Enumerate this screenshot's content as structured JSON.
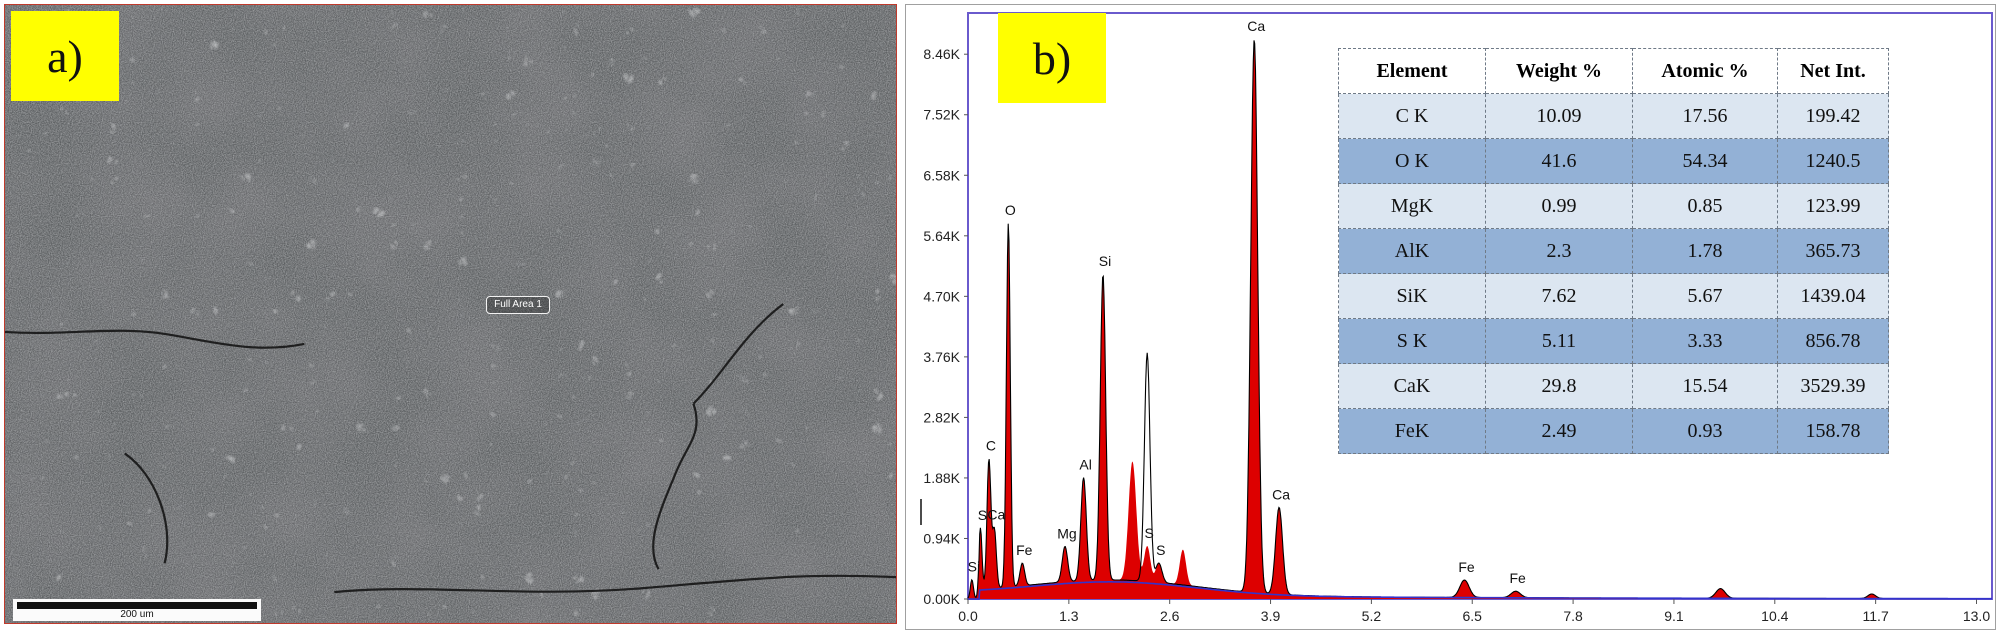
{
  "panel_a": {
    "label": "a)",
    "area_tag": "Full Area 1",
    "scale_bar": "200 um"
  },
  "panel_b": {
    "label": "b)"
  },
  "table": {
    "headers": [
      "Element",
      "Weight %",
      "Atomic %",
      "Net Int."
    ],
    "rows": [
      [
        "C K",
        "10.09",
        "17.56",
        "199.42"
      ],
      [
        "O K",
        "41.6",
        "54.34",
        "1240.5"
      ],
      [
        "MgK",
        "0.99",
        "0.85",
        "123.99"
      ],
      [
        "AlK",
        "2.3",
        "1.78",
        "365.73"
      ],
      [
        "SiK",
        "7.62",
        "5.67",
        "1439.04"
      ],
      [
        "S K",
        "5.11",
        "3.33",
        "856.78"
      ],
      [
        "CaK",
        "29.8",
        "15.54",
        "3529.39"
      ],
      [
        "FeK",
        "2.49",
        "0.93",
        "158.78"
      ]
    ]
  },
  "chart_data": {
    "type": "area",
    "title": "",
    "xlabel": "",
    "ylabel": "",
    "xlim": [
      0,
      13.2
    ],
    "ylim": [
      0,
      9.1
    ],
    "x_ticks": [
      "0.0",
      "1.3",
      "2.6",
      "3.9",
      "5.2",
      "6.5",
      "7.8",
      "9.1",
      "10.4",
      "11.7",
      "13.0"
    ],
    "y_ticks": [
      "0.00K",
      "0.94K",
      "1.88K",
      "2.82K",
      "3.76K",
      "4.70K",
      "5.64K",
      "6.58K",
      "7.52K",
      "8.46K"
    ],
    "fill_color": "#dd0000",
    "outline_color": "#000000",
    "background_fit_color": "#3333cc",
    "axis_color": "#6a5acd",
    "peaks": [
      {
        "label": "Si",
        "x": 0.05,
        "y": 0.3,
        "w": 0.02
      },
      {
        "label": "C",
        "x": 0.27,
        "y": 2.0,
        "w": 0.025
      },
      {
        "label": "S",
        "x": 0.16,
        "y": 0.95,
        "w": 0.02
      },
      {
        "label": "Ca",
        "x": 0.34,
        "y": 0.9,
        "w": 0.025
      },
      {
        "label": "O",
        "x": 0.52,
        "y": 5.65,
        "w": 0.025
      },
      {
        "label": "Fe",
        "x": 0.7,
        "y": 0.35,
        "w": 0.03
      },
      {
        "label": "Mg",
        "x": 1.25,
        "y": 0.55,
        "w": 0.035
      },
      {
        "label": "Al",
        "x": 1.49,
        "y": 1.6,
        "w": 0.035
      },
      {
        "label": "Si",
        "x": 1.74,
        "y": 4.75,
        "w": 0.035
      },
      {
        "label": "",
        "x": 2.12,
        "y": 1.85,
        "w": 0.05
      },
      {
        "label": "S",
        "x": 2.31,
        "y": 0.55,
        "w": 0.04
      },
      {
        "label": "S",
        "x": 2.46,
        "y": 0.3,
        "w": 0.04
      },
      {
        "label": "",
        "x": 2.77,
        "y": 0.55,
        "w": 0.04
      },
      {
        "label": "Ca",
        "x": 3.69,
        "y": 8.6,
        "w": 0.045
      },
      {
        "label": "Ca",
        "x": 4.01,
        "y": 1.35,
        "w": 0.045
      },
      {
        "label": "Fe",
        "x": 6.4,
        "y": 0.27,
        "w": 0.06
      },
      {
        "label": "Fe",
        "x": 7.06,
        "y": 0.1,
        "w": 0.06
      },
      {
        "label": "",
        "x": 9.7,
        "y": 0.15,
        "w": 0.06
      },
      {
        "label": "",
        "x": 11.65,
        "y": 0.07,
        "w": 0.05
      }
    ],
    "fit_peaks": [
      {
        "x": 2.31,
        "y": 3.0,
        "w": 0.035
      }
    ]
  }
}
